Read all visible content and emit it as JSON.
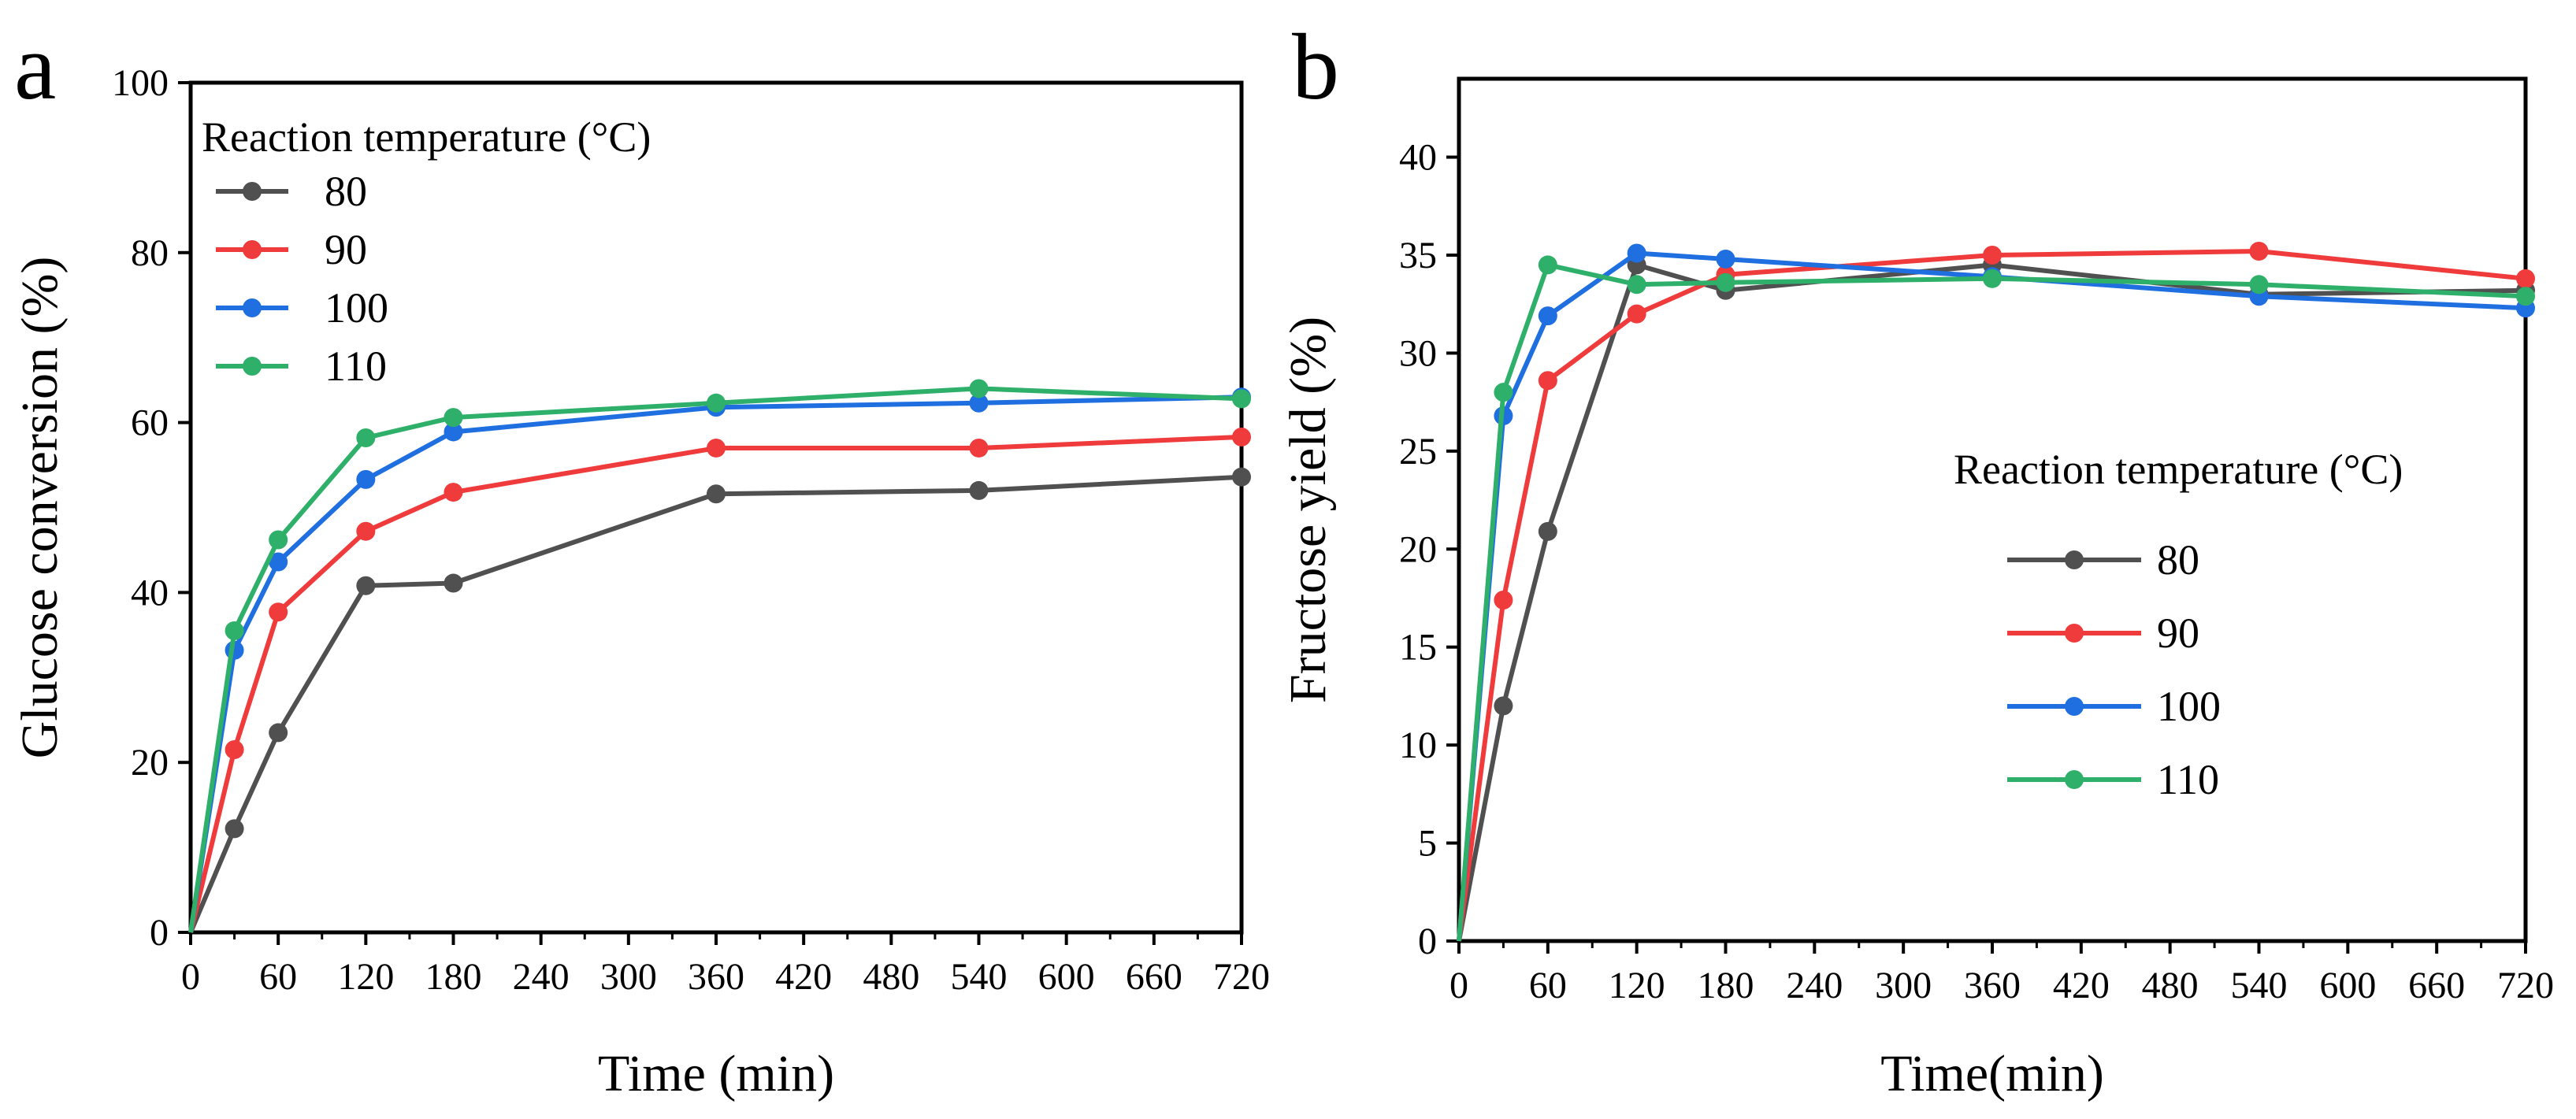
{
  "chart_data": [
    {
      "panel": "a",
      "type": "line",
      "title": "",
      "xlabel": "Time (min)",
      "ylabel": "Glucose conversion (%)",
      "xlim": [
        0,
        720
      ],
      "ylim": [
        0,
        100
      ],
      "xticks": [
        0,
        60,
        120,
        180,
        240,
        300,
        360,
        420,
        480,
        540,
        600,
        660,
        720
      ],
      "yticks": [
        0,
        20,
        40,
        60,
        80,
        100
      ],
      "grid": false,
      "legend": {
        "title": "Reaction temperature (°C)",
        "placement": "top-left"
      },
      "x": [
        0,
        30,
        60,
        120,
        180,
        360,
        540,
        720
      ],
      "series": [
        {
          "name": "80",
          "color": "#505050",
          "values": [
            0,
            12.2,
            23.5,
            40.8,
            41.1,
            51.6,
            52.0,
            53.6
          ]
        },
        {
          "name": "90",
          "color": "#ef3b3b",
          "values": [
            0,
            21.5,
            37.7,
            47.2,
            51.8,
            57.0,
            57.0,
            58.3
          ]
        },
        {
          "name": "100",
          "color": "#1f6fe0",
          "values": [
            0,
            33.2,
            43.6,
            53.3,
            58.9,
            61.8,
            62.3,
            63.0
          ]
        },
        {
          "name": "110",
          "color": "#2fb06a",
          "values": [
            0,
            35.5,
            46.2,
            58.2,
            60.6,
            62.3,
            64.0,
            62.8
          ]
        }
      ]
    },
    {
      "panel": "b",
      "type": "line",
      "title": "",
      "xlabel": "Time(min)",
      "ylabel": "Fructose yield (%)",
      "xlim": [
        0,
        720
      ],
      "ylim": [
        0,
        44
      ],
      "xticks": [
        0,
        60,
        120,
        180,
        240,
        300,
        360,
        420,
        480,
        540,
        600,
        660,
        720
      ],
      "yticks": [
        0,
        5,
        10,
        15,
        20,
        25,
        30,
        35,
        40
      ],
      "grid": false,
      "legend": {
        "title": "Reaction temperature (°C)",
        "placement": "center-right"
      },
      "x": [
        0,
        30,
        60,
        120,
        180,
        360,
        540,
        720
      ],
      "series": [
        {
          "name": "80",
          "color": "#505050",
          "values": [
            0,
            12.0,
            20.9,
            34.5,
            33.2,
            34.5,
            33.0,
            33.2
          ]
        },
        {
          "name": "90",
          "color": "#ef3b3b",
          "values": [
            0,
            17.4,
            28.6,
            32.0,
            34.0,
            35.0,
            35.2,
            33.8
          ]
        },
        {
          "name": "100",
          "color": "#1f6fe0",
          "values": [
            0,
            26.8,
            31.9,
            35.1,
            34.8,
            33.9,
            32.9,
            32.3
          ]
        },
        {
          "name": "110",
          "color": "#2fb06a",
          "values": [
            0,
            28.0,
            34.5,
            33.5,
            33.6,
            33.8,
            33.5,
            32.9
          ]
        }
      ]
    }
  ],
  "panel_labels": [
    "a",
    "b"
  ]
}
